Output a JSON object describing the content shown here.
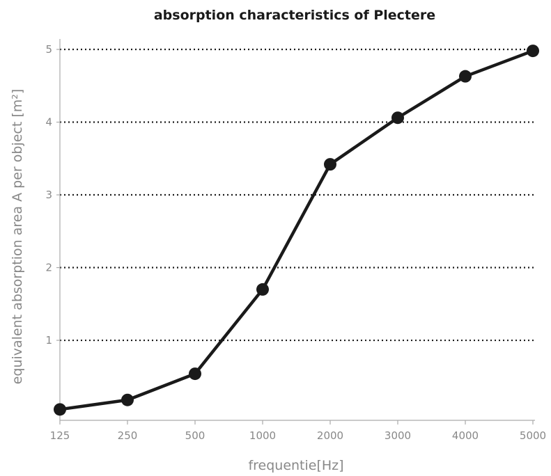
{
  "chart_data": {
    "type": "line",
    "title": "absorption characteristics of Plectere",
    "xlabel": "frequentie[Hz]",
    "ylabel": "equivalent absorption area A per object [m²]",
    "categories": [
      "125",
      "250",
      "500",
      "1000",
      "2000",
      "3000",
      "4000",
      "5000"
    ],
    "series": [
      {
        "values": [
          0.05,
          0.18,
          0.54,
          1.7,
          3.42,
          4.06,
          4.63,
          4.98
        ]
      }
    ],
    "ylim": [
      -0.1,
      5.0
    ],
    "yticks": [
      1,
      2,
      3,
      4,
      5
    ],
    "grid": true,
    "grid_style": "dotted",
    "legend": "none",
    "colors": {
      "line": "#1a1a1a",
      "marker": "#1a1a1a",
      "grid": "#1a1a1a",
      "axis": "#aaaaaa",
      "label": "#888888"
    }
  }
}
